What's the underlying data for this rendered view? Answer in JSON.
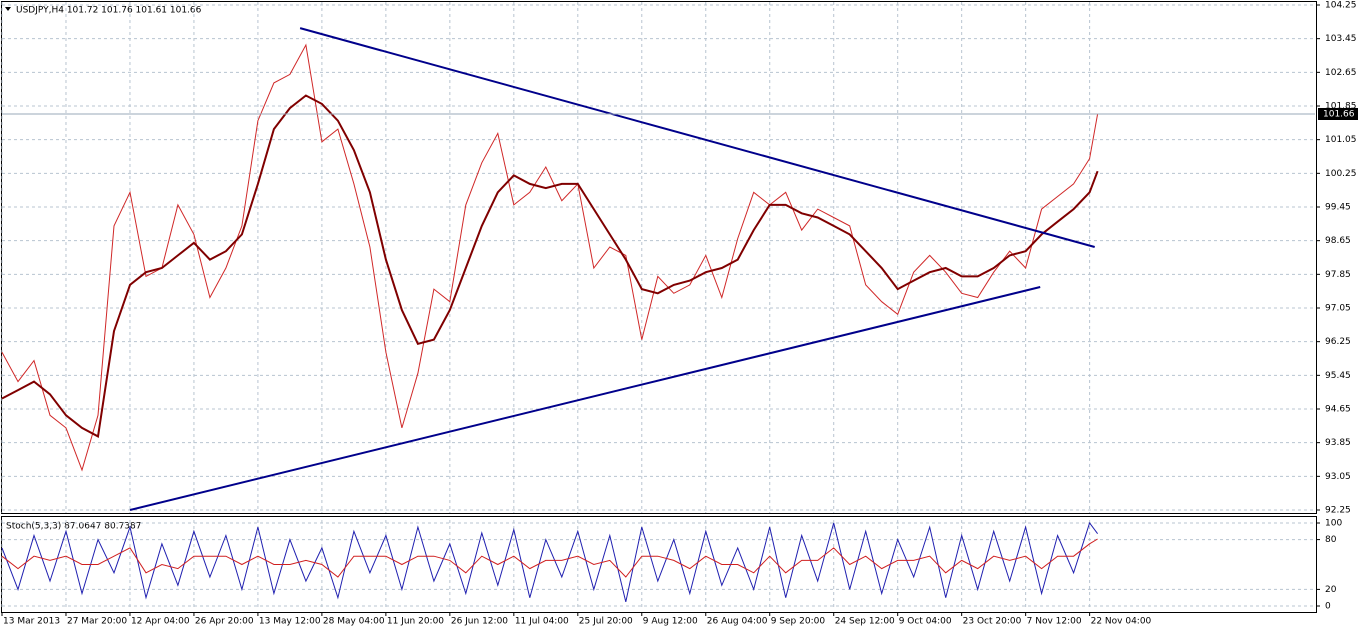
{
  "chart_data": [
    {
      "type": "line",
      "title": "USDJPY,H4  101.72 101.76 101.61 101.66",
      "x": [
        0,
        22,
        44,
        66,
        88,
        110,
        132,
        154,
        176,
        198,
        220,
        242,
        264,
        286,
        308,
        330,
        352,
        374,
        396,
        418,
        440,
        462,
        484,
        506,
        528,
        550,
        572,
        594,
        616,
        638,
        660,
        682,
        704,
        726,
        748,
        770,
        792,
        814,
        836,
        858,
        880,
        902,
        924,
        946,
        968,
        990,
        1012,
        1034,
        1056,
        1078,
        1100,
        1122,
        1144,
        1166,
        1188,
        1210,
        1232,
        1254,
        1276,
        1298,
        1320,
        1342,
        1364,
        1386,
        1408,
        1430,
        1452,
        1474,
        1496,
        1507
      ],
      "xlim": [
        0,
        1806
      ],
      "xticks": [
        {
          "value": 0,
          "label": "13 Mar 2013"
        },
        {
          "value": 88,
          "label": "27 Mar 20:00"
        },
        {
          "value": 176,
          "label": "12 Apr 04:00"
        },
        {
          "value": 264,
          "label": "26 Apr 20:00"
        },
        {
          "value": 352,
          "label": "13 May 12:00"
        },
        {
          "value": 440,
          "label": "28 May 04:00"
        },
        {
          "value": 528,
          "label": "11 Jun 20:00"
        },
        {
          "value": 616,
          "label": "26 Jun 12:00"
        },
        {
          "value": 704,
          "label": "11 Jul 04:00"
        },
        {
          "value": 792,
          "label": "25 Jul 20:00"
        },
        {
          "value": 880,
          "label": "9 Aug 12:00"
        },
        {
          "value": 968,
          "label": "26 Aug 04:00"
        },
        {
          "value": 1056,
          "label": "9 Sep 20:00"
        },
        {
          "value": 1144,
          "label": "24 Sep 12:00"
        },
        {
          "value": 1232,
          "label": "9 Oct 04:00"
        },
        {
          "value": 1320,
          "label": "23 Oct 20:00"
        },
        {
          "value": 1408,
          "label": "7 Nov 12:00"
        },
        {
          "value": 1496,
          "label": "22 Nov 04:00"
        }
      ],
      "ylim": [
        92.25,
        104.25
      ],
      "yticks": [
        104.25,
        103.45,
        102.65,
        101.85,
        101.05,
        100.25,
        99.45,
        98.65,
        97.85,
        97.05,
        96.25,
        95.45,
        94.65,
        93.85,
        93.05,
        92.25
      ],
      "grid": true,
      "last_price": 101.66,
      "series": [
        {
          "color": "#d02828",
          "line_width": 1,
          "values": [
            96.0,
            95.3,
            95.8,
            94.5,
            94.2,
            93.2,
            94.5,
            99.0,
            99.8,
            97.8,
            98.0,
            99.5,
            98.8,
            97.3,
            98.0,
            99.0,
            101.5,
            102.4,
            102.6,
            103.3,
            101.0,
            101.3,
            100.0,
            98.5,
            96.0,
            94.2,
            95.5,
            97.5,
            97.2,
            99.5,
            100.5,
            101.2,
            99.5,
            99.8,
            100.4,
            99.6,
            100.0,
            98.0,
            98.5,
            98.3,
            96.3,
            97.8,
            97.4,
            97.6,
            98.3,
            97.3,
            98.7,
            99.8,
            99.5,
            99.8,
            98.9,
            99.4,
            99.2,
            99.0,
            97.6,
            97.2,
            96.9,
            97.9,
            98.3,
            97.9,
            97.4,
            97.3,
            97.9,
            98.4,
            98.0,
            99.4,
            99.7,
            100.0,
            100.6,
            101.66
          ]
        },
        {
          "color": "#800000",
          "line_width": 2,
          "values": [
            94.9,
            95.1,
            95.3,
            95.0,
            94.5,
            94.2,
            94.0,
            96.5,
            97.6,
            97.9,
            98.0,
            98.3,
            98.6,
            98.2,
            98.4,
            98.8,
            100.0,
            101.3,
            101.8,
            102.1,
            101.9,
            101.5,
            100.8,
            99.8,
            98.2,
            97.0,
            96.2,
            96.3,
            97.0,
            98.0,
            99.0,
            99.8,
            100.2,
            100.0,
            99.9,
            100.0,
            100.0,
            99.4,
            98.8,
            98.2,
            97.5,
            97.4,
            97.6,
            97.7,
            97.9,
            98.0,
            98.2,
            98.9,
            99.5,
            99.5,
            99.3,
            99.2,
            99.0,
            98.8,
            98.4,
            98.0,
            97.5,
            97.7,
            97.9,
            98.0,
            97.8,
            97.8,
            98.0,
            98.3,
            98.4,
            98.8,
            99.1,
            99.4,
            99.8,
            100.3
          ]
        },
        {
          "color": "#00008b",
          "line_width": 2,
          "x": [
            410,
            1503
          ],
          "values": [
            103.7,
            98.5
          ]
        },
        {
          "color": "#00008b",
          "line_width": 2,
          "x": [
            176,
            1428
          ],
          "values": [
            92.25,
            97.55
          ]
        }
      ]
    },
    {
      "type": "line",
      "title": "Stoch(5,3,3) 87.0647 80.7387",
      "x": [
        0,
        22,
        44,
        66,
        88,
        110,
        132,
        154,
        176,
        198,
        220,
        242,
        264,
        286,
        308,
        330,
        352,
        374,
        396,
        418,
        440,
        462,
        484,
        506,
        528,
        550,
        572,
        594,
        616,
        638,
        660,
        682,
        704,
        726,
        748,
        770,
        792,
        814,
        836,
        858,
        880,
        902,
        924,
        946,
        968,
        990,
        1012,
        1034,
        1056,
        1078,
        1100,
        1122,
        1144,
        1166,
        1188,
        1210,
        1232,
        1254,
        1276,
        1298,
        1320,
        1342,
        1364,
        1386,
        1408,
        1430,
        1452,
        1474,
        1496,
        1507
      ],
      "xlim": [
        0,
        1806
      ],
      "ylim": [
        0,
        100
      ],
      "yticks": [
        100,
        80,
        20,
        0
      ],
      "grid": true,
      "series": [
        {
          "color": "#2020b0",
          "line_width": 1,
          "values": [
            70,
            20,
            85,
            30,
            90,
            15,
            80,
            40,
            95,
            10,
            75,
            25,
            90,
            35,
            85,
            20,
            95,
            15,
            80,
            30,
            70,
            10,
            90,
            40,
            85,
            20,
            95,
            30,
            75,
            15,
            88,
            25,
            92,
            10,
            80,
            35,
            90,
            20,
            85,
            5,
            95,
            30,
            80,
            15,
            90,
            25,
            70,
            20,
            95,
            10,
            85,
            30,
            100,
            20,
            90,
            15,
            80,
            35,
            95,
            10,
            85,
            20,
            90,
            30,
            95,
            15,
            85,
            40,
            100,
            87.0647
          ]
        },
        {
          "color": "#d02020",
          "line_width": 1,
          "values": [
            60,
            45,
            60,
            55,
            60,
            50,
            50,
            60,
            70,
            40,
            50,
            45,
            60,
            60,
            60,
            50,
            60,
            50,
            50,
            55,
            50,
            35,
            60,
            60,
            60,
            50,
            60,
            60,
            55,
            40,
            60,
            50,
            60,
            45,
            55,
            55,
            60,
            50,
            55,
            35,
            60,
            60,
            55,
            45,
            60,
            50,
            50,
            40,
            60,
            40,
            55,
            55,
            70,
            50,
            60,
            45,
            55,
            55,
            60,
            40,
            55,
            45,
            60,
            55,
            60,
            45,
            60,
            60,
            75,
            80.7387
          ]
        }
      ]
    }
  ]
}
